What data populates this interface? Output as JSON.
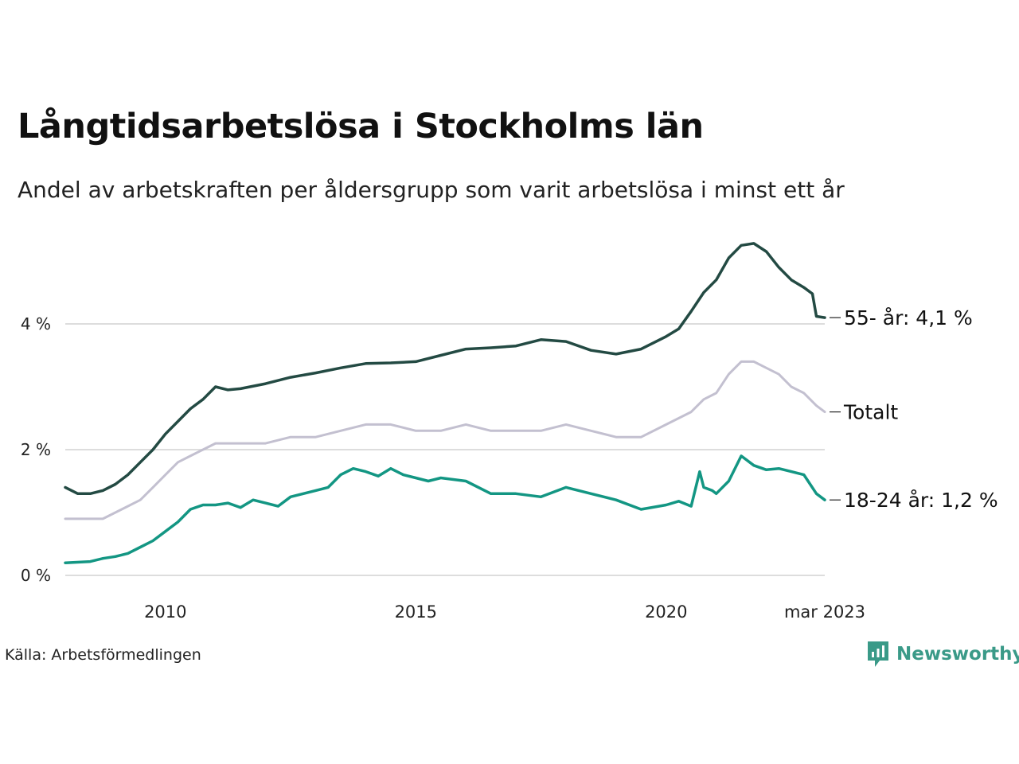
{
  "title": "Långtidsarbetslösa i Stockholms län",
  "subtitle": "Andel av arbetskraften per åldersgrupp som varit arbetslösa i minst ett år",
  "source": "Källa: Arbetsförmedlingen",
  "brand": "Newsworthy",
  "colors": {
    "s55": "#234a43",
    "total": "#c3c0d0",
    "young": "#139683",
    "grid": "#dddddd",
    "brand": "#3a9a88"
  },
  "chart_data": {
    "type": "line",
    "ylim": [
      0,
      5.3
    ],
    "yticks": [
      0,
      2,
      4
    ],
    "ytick_labels": [
      "0 %",
      "2 %",
      "4 %"
    ],
    "xlim": [
      2008.0,
      2023.167
    ],
    "xticks": [
      2010,
      2015,
      2020,
      2023.167
    ],
    "xtick_labels": [
      "2010",
      "2015",
      "2020",
      "mar 2023"
    ],
    "grid": true,
    "legend": "end-labels",
    "series": [
      {
        "name": "55- år",
        "end_label": "55- år: 4,1 %",
        "x": [
          2008.0,
          2008.25,
          2008.5,
          2008.75,
          2009.0,
          2009.25,
          2009.5,
          2009.75,
          2010.0,
          2010.25,
          2010.5,
          2010.75,
          2011.0,
          2011.25,
          2011.5,
          2012.0,
          2012.5,
          2013.0,
          2013.5,
          2014.0,
          2014.5,
          2015.0,
          2015.5,
          2016.0,
          2016.5,
          2017.0,
          2017.5,
          2018.0,
          2018.5,
          2019.0,
          2019.5,
          2020.0,
          2020.25,
          2020.5,
          2020.75,
          2021.0,
          2021.25,
          2021.5,
          2021.75,
          2022.0,
          2022.25,
          2022.5,
          2022.75,
          2022.92,
          2023.0,
          2023.167
        ],
        "values": [
          1.4,
          1.3,
          1.3,
          1.35,
          1.45,
          1.6,
          1.8,
          2.0,
          2.25,
          2.45,
          2.65,
          2.8,
          3.0,
          2.95,
          2.97,
          3.05,
          3.15,
          3.22,
          3.3,
          3.37,
          3.38,
          3.4,
          3.5,
          3.6,
          3.62,
          3.65,
          3.75,
          3.72,
          3.58,
          3.52,
          3.6,
          3.8,
          3.92,
          4.2,
          4.5,
          4.7,
          5.05,
          5.25,
          5.28,
          5.15,
          4.9,
          4.7,
          4.58,
          4.48,
          4.12,
          4.1
        ]
      },
      {
        "name": "Totalt",
        "end_label": "Totalt",
        "x": [
          2008.0,
          2008.75,
          2009.0,
          2009.25,
          2009.5,
          2009.75,
          2010.0,
          2010.25,
          2010.5,
          2010.75,
          2011.0,
          2011.5,
          2012.0,
          2012.5,
          2013.0,
          2013.5,
          2014.0,
          2014.5,
          2015.0,
          2015.5,
          2016.0,
          2016.5,
          2017.0,
          2017.5,
          2018.0,
          2018.5,
          2019.0,
          2019.5,
          2020.0,
          2020.25,
          2020.5,
          2020.75,
          2021.0,
          2021.25,
          2021.5,
          2021.75,
          2022.0,
          2022.25,
          2022.5,
          2022.75,
          2023.0,
          2023.167
        ],
        "values": [
          0.9,
          0.9,
          1.0,
          1.1,
          1.2,
          1.4,
          1.6,
          1.8,
          1.9,
          2.0,
          2.1,
          2.1,
          2.1,
          2.2,
          2.2,
          2.3,
          2.4,
          2.4,
          2.3,
          2.3,
          2.4,
          2.3,
          2.3,
          2.3,
          2.4,
          2.3,
          2.2,
          2.2,
          2.4,
          2.5,
          2.6,
          2.8,
          2.9,
          3.2,
          3.4,
          3.4,
          3.3,
          3.2,
          3.0,
          2.9,
          2.7,
          2.6
        ]
      },
      {
        "name": "18-24 år",
        "end_label": "18-24 år: 1,2 %",
        "x": [
          2008.0,
          2008.5,
          2008.75,
          2009.0,
          2009.25,
          2009.5,
          2009.75,
          2010.0,
          2010.25,
          2010.5,
          2010.75,
          2011.0,
          2011.25,
          2011.5,
          2011.75,
          2012.0,
          2012.25,
          2012.5,
          2013.0,
          2013.25,
          2013.5,
          2013.75,
          2014.0,
          2014.25,
          2014.5,
          2014.75,
          2015.0,
          2015.25,
          2015.5,
          2016.0,
          2016.5,
          2017.0,
          2017.5,
          2018.0,
          2018.5,
          2019.0,
          2019.5,
          2020.0,
          2020.25,
          2020.5,
          2020.67,
          2020.75,
          2020.92,
          2021.0,
          2021.25,
          2021.5,
          2021.75,
          2022.0,
          2022.25,
          2022.5,
          2022.75,
          2023.0,
          2023.167
        ],
        "values": [
          0.2,
          0.22,
          0.27,
          0.3,
          0.35,
          0.45,
          0.55,
          0.7,
          0.85,
          1.05,
          1.12,
          1.12,
          1.15,
          1.08,
          1.2,
          1.15,
          1.1,
          1.25,
          1.35,
          1.4,
          1.6,
          1.7,
          1.65,
          1.58,
          1.7,
          1.6,
          1.55,
          1.5,
          1.55,
          1.5,
          1.3,
          1.3,
          1.25,
          1.4,
          1.3,
          1.2,
          1.05,
          1.12,
          1.18,
          1.1,
          1.65,
          1.4,
          1.35,
          1.3,
          1.5,
          1.9,
          1.75,
          1.68,
          1.7,
          1.65,
          1.6,
          1.3,
          1.2
        ]
      }
    ]
  }
}
